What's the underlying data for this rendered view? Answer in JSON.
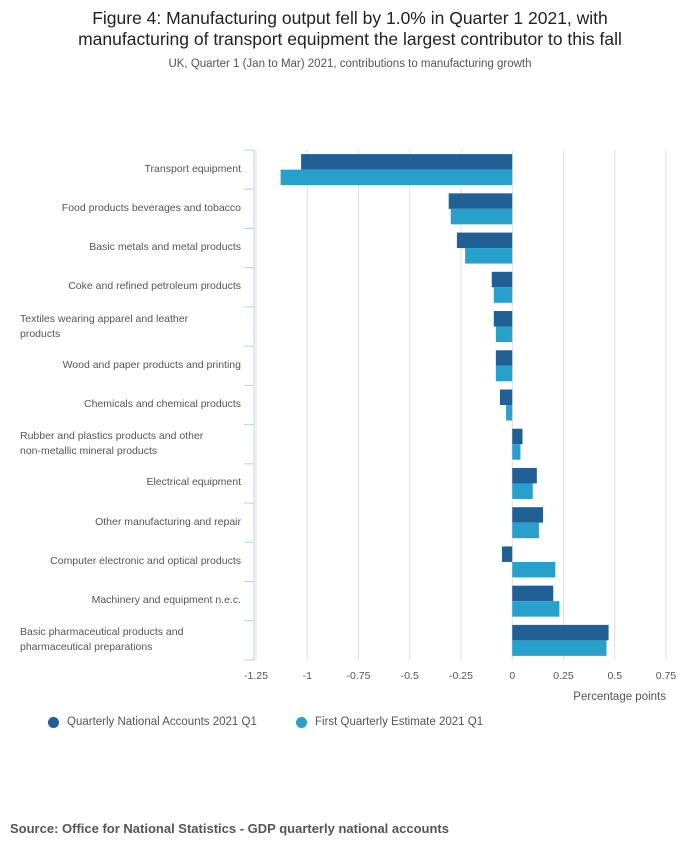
{
  "title_line1": "Figure 4: Manufacturing output fell by 1.0% in Quarter 1 2021, with",
  "title_line2": "manufacturing of transport equipment the largest contributor to this fall",
  "subtitle": "UK, Quarter 1 (Jan to Mar) 2021, contributions to manufacturing growth",
  "source": "Source: Office for National Statistics - GDP quarterly national accounts",
  "colors": {
    "series1": "#206095",
    "series2": "#27a0cc",
    "grid": "#e0e0e0",
    "axis": "#b7d3e3"
  },
  "chart_data": {
    "type": "bar",
    "orientation": "horizontal",
    "title": "Figure 4: Manufacturing output fell by 1.0% in Quarter 1 2021, with manufacturing of transport equipment the largest contributor to this fall",
    "subtitle": "UK, Quarter 1 (Jan to Mar) 2021, contributions to manufacturing growth",
    "xlabel": "Percentage points",
    "ylabel": "",
    "xlim": [
      -1.25,
      0.75
    ],
    "ticks": [
      "-1.25",
      "-1",
      "-0.75",
      "-0.5",
      "-0.25",
      "0",
      "0.25",
      "0.5",
      "0.75"
    ],
    "tick_values": [
      -1.25,
      -1,
      -0.75,
      -0.5,
      -0.25,
      0,
      0.25,
      0.5,
      0.75
    ],
    "categories": [
      "Transport equipment",
      "Food products beverages and tobacco",
      "Basic metals and metal products",
      "Coke and refined petroleum products",
      "Textiles wearing apparel and leather products",
      "Wood and paper products and printing",
      "Chemicals and chemical products",
      "Rubber and plastics products and other non-metallic mineral products",
      "Electrical equipment",
      "Other manufacturing and repair",
      "Computer electronic and optical products",
      "Machinery and equipment n.e.c.",
      "Basic pharmaceutical products and pharmaceutical preparations"
    ],
    "category_lines": [
      [
        "Transport equipment"
      ],
      [
        "Food products beverages and tobacco"
      ],
      [
        "Basic metals and metal products"
      ],
      [
        "Coke and refined petroleum products"
      ],
      [
        "Textiles wearing apparel and leather",
        "products"
      ],
      [
        "Wood and paper products and printing"
      ],
      [
        "Chemicals and chemical products"
      ],
      [
        "Rubber and plastics products and other",
        "non-metallic mineral products"
      ],
      [
        "Electrical equipment"
      ],
      [
        "Other manufacturing and repair"
      ],
      [
        "Computer electronic and optical products"
      ],
      [
        "Machinery and equipment n.e.c."
      ],
      [
        "Basic pharmaceutical products and",
        "pharmaceutical preparations"
      ]
    ],
    "series": [
      {
        "name": "Quarterly National Accounts 2021 Q1",
        "values": [
          -1.03,
          -0.31,
          -0.27,
          -0.1,
          -0.09,
          -0.08,
          -0.06,
          0.05,
          0.12,
          0.15,
          -0.05,
          0.2,
          0.47
        ]
      },
      {
        "name": "First Quarterly Estimate 2021 Q1",
        "values": [
          -1.13,
          -0.3,
          -0.23,
          -0.09,
          -0.08,
          -0.08,
          -0.03,
          0.04,
          0.1,
          0.13,
          0.21,
          0.23,
          0.46
        ]
      }
    ],
    "legend_position": "bottom-left",
    "grid": true
  }
}
